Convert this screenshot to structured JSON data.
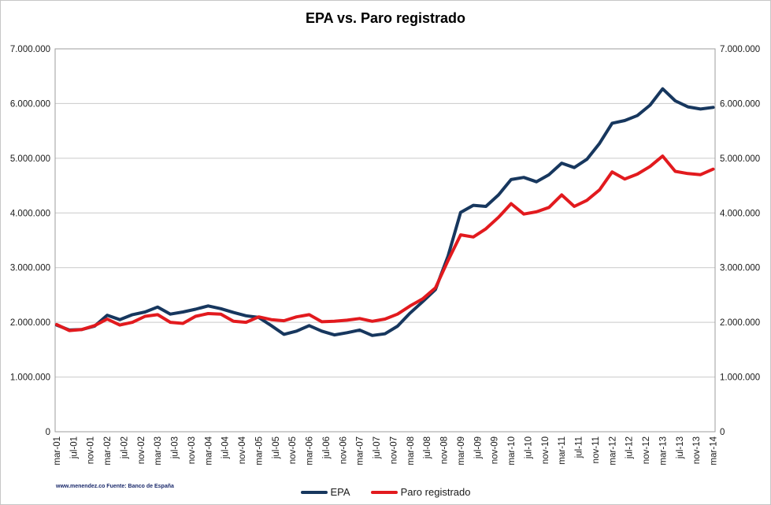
{
  "title": "EPA vs. Paro registrado",
  "footer": "www.menendez.co Fuente: Banco de España",
  "colors": {
    "epa_line": "#17375E",
    "paro_line": "#E21A1E",
    "gridline": "#C9C9C9",
    "plot_border": "#9E9E9E",
    "axis_text": "#1a1a1a",
    "footer_text": "#1b2a6b"
  },
  "chart_data": {
    "type": "line",
    "title": "EPA vs. Paro registrado",
    "xlabel": "",
    "ylabel": "",
    "ylim": [
      0,
      7000000
    ],
    "grid": "horizontal",
    "legend_position": "bottom",
    "y_ticks": [
      {
        "value": 0,
        "label": "0"
      },
      {
        "value": 1000000,
        "label": "1.000.000"
      },
      {
        "value": 2000000,
        "label": "2.000.000"
      },
      {
        "value": 3000000,
        "label": "3.000.000"
      },
      {
        "value": 4000000,
        "label": "4.000.000"
      },
      {
        "value": 5000000,
        "label": "5.000.000"
      },
      {
        "value": 6000000,
        "label": "6.000.000"
      },
      {
        "value": 7000000,
        "label": "7.000.000"
      }
    ],
    "x_axis_tick_labels": [
      "mar-01",
      "jul-01",
      "nov-01",
      "mar-02",
      "jul-02",
      "nov-02",
      "mar-03",
      "jul-03",
      "nov-03",
      "mar-04",
      "jul-04",
      "nov-04",
      "mar-05",
      "jul-05",
      "nov-05",
      "mar-06",
      "jul-06",
      "nov-06",
      "mar-07",
      "jul-07",
      "nov-07",
      "mar-08",
      "jul-08",
      "nov-08",
      "mar-09",
      "jul-09",
      "nov-09",
      "mar-10",
      "jul-10",
      "nov-10",
      "mar-11",
      "jul-11",
      "nov-11",
      "mar-12",
      "jul-12",
      "nov-12",
      "mar-13",
      "jul-13",
      "nov-13",
      "mar-14"
    ],
    "x": [
      "mar-01",
      "jun-01",
      "sep-01",
      "dec-01",
      "mar-02",
      "jun-02",
      "sep-02",
      "dec-02",
      "mar-03",
      "jun-03",
      "sep-03",
      "dec-03",
      "mar-04",
      "jun-04",
      "sep-04",
      "dec-04",
      "mar-05",
      "jun-05",
      "sep-05",
      "dec-05",
      "mar-06",
      "jun-06",
      "sep-06",
      "dec-06",
      "mar-07",
      "jun-07",
      "sep-07",
      "dec-07",
      "mar-08",
      "jun-08",
      "sep-08",
      "dec-08",
      "mar-09",
      "jun-09",
      "sep-09",
      "dec-09",
      "mar-10",
      "jun-10",
      "sep-10",
      "dec-10",
      "mar-11",
      "jun-11",
      "sep-11",
      "dec-11",
      "mar-12",
      "jun-12",
      "sep-12",
      "dec-12",
      "mar-13",
      "jun-13",
      "sep-13",
      "dec-13",
      "mar-14"
    ],
    "series": [
      {
        "name": "EPA",
        "color": "#17375E",
        "values": [
          1950000,
          1860000,
          1870000,
          1930000,
          2130000,
          2050000,
          2140000,
          2190000,
          2280000,
          2150000,
          2190000,
          2240000,
          2300000,
          2250000,
          2180000,
          2120000,
          2090000,
          1940000,
          1780000,
          1840000,
          1940000,
          1840000,
          1770000,
          1810000,
          1860000,
          1760000,
          1790000,
          1930000,
          2170000,
          2380000,
          2600000,
          3210000,
          4010000,
          4140000,
          4120000,
          4330000,
          4610000,
          4650000,
          4570000,
          4700000,
          4910000,
          4830000,
          4980000,
          5270000,
          5640000,
          5690000,
          5780000,
          5970000,
          6270000,
          6050000,
          5940000,
          5900000,
          5930000
        ]
      },
      {
        "name": "Paro registrado",
        "color": "#E21A1E",
        "values": [
          1960000,
          1850000,
          1870000,
          1940000,
          2060000,
          1950000,
          2000000,
          2110000,
          2140000,
          2000000,
          1980000,
          2110000,
          2160000,
          2150000,
          2020000,
          2000000,
          2100000,
          2050000,
          2030000,
          2100000,
          2140000,
          2010000,
          2020000,
          2040000,
          2070000,
          2020000,
          2060000,
          2150000,
          2300000,
          2430000,
          2630000,
          3130000,
          3600000,
          3560000,
          3710000,
          3920000,
          4170000,
          3980000,
          4020000,
          4100000,
          4330000,
          4120000,
          4230000,
          4420000,
          4750000,
          4620000,
          4710000,
          4850000,
          5040000,
          4760000,
          4720000,
          4700000,
          4800000
        ]
      }
    ]
  },
  "legend": {
    "items": [
      {
        "label": "EPA"
      },
      {
        "label": "Paro registrado"
      }
    ]
  }
}
